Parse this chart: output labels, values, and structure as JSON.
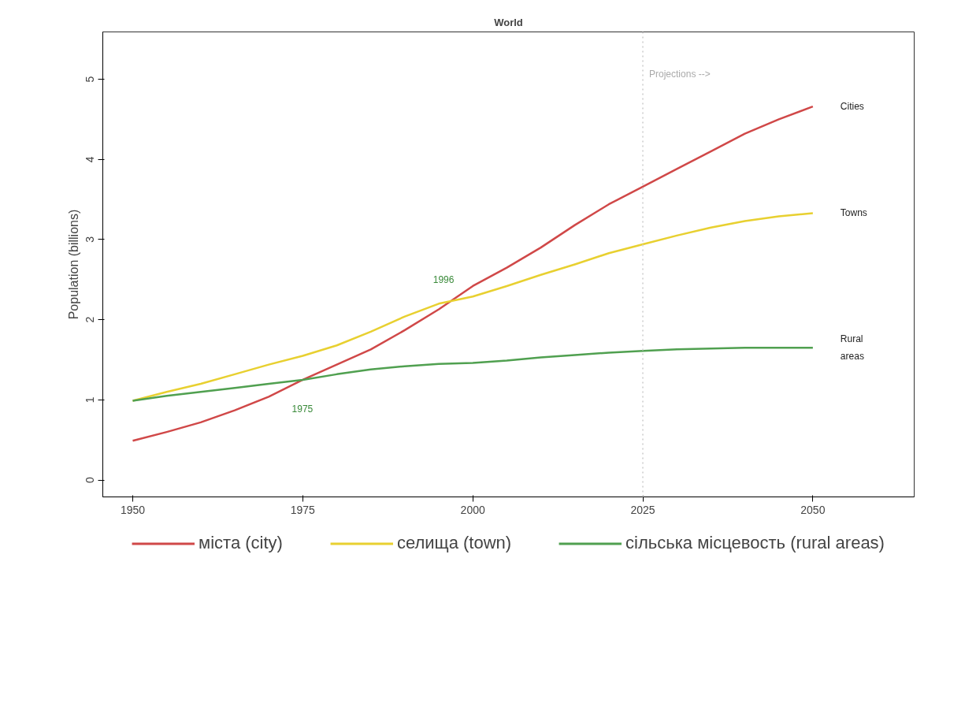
{
  "chart_data": {
    "type": "line",
    "title": "World",
    "ylabel": "Population (billions)",
    "x": [
      1950,
      1955,
      1960,
      1965,
      1970,
      1975,
      1980,
      1985,
      1990,
      1995,
      2000,
      2005,
      2010,
      2015,
      2020,
      2025,
      2030,
      2035,
      2040,
      2045,
      2050
    ],
    "series": [
      {
        "name": "міста (city)",
        "color": "#d04848",
        "values": [
          0.49,
          0.6,
          0.72,
          0.87,
          1.04,
          1.25,
          1.44,
          1.63,
          1.87,
          2.13,
          2.42,
          2.65,
          2.9,
          3.18,
          3.44,
          3.66,
          3.88,
          4.1,
          4.32,
          4.5,
          4.66
        ]
      },
      {
        "name": "селища (town)",
        "color": "#e8d030",
        "values": [
          0.99,
          1.1,
          1.2,
          1.32,
          1.44,
          1.55,
          1.68,
          1.85,
          2.04,
          2.2,
          2.29,
          2.42,
          2.56,
          2.69,
          2.83,
          2.94,
          3.05,
          3.15,
          3.23,
          3.29,
          3.33
        ]
      },
      {
        "name": "сільська місцевость (rural areas)",
        "color": "#50a050",
        "values": [
          0.99,
          1.05,
          1.1,
          1.15,
          1.2,
          1.25,
          1.32,
          1.38,
          1.42,
          1.45,
          1.46,
          1.49,
          1.53,
          1.56,
          1.59,
          1.61,
          1.63,
          1.64,
          1.65,
          1.65,
          1.65
        ]
      }
    ],
    "annotations": [
      "Cities",
      "Towns",
      "Rural\nareas",
      "1996",
      "1975"
    ],
    "ref_lines": [
      {
        "axis": "x",
        "value": 2025,
        "label": "Projections -->",
        "color": "#d8d8d8",
        "line_style": "dotted"
      }
    ],
    "xlim": [
      1945.6,
      2064.9
    ],
    "ylim": [
      -0.21,
      5.59
    ],
    "xticks": [
      1950,
      1975,
      2000,
      2025,
      2050
    ],
    "yticks": [
      0,
      1,
      2,
      3,
      4,
      5
    ],
    "grid": false,
    "legend": "bottom",
    "line_style": "solid",
    "marker": "none"
  }
}
